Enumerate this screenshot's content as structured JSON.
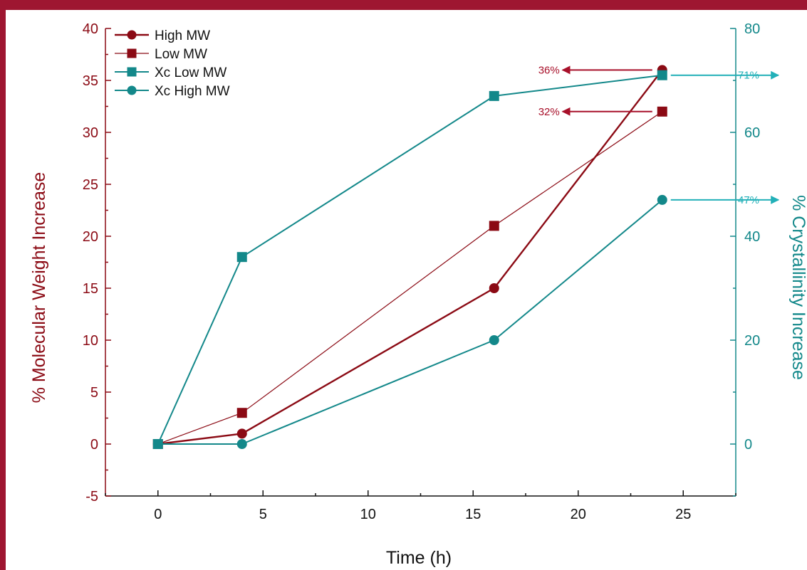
{
  "chart_data": {
    "type": "line",
    "x_label": "Time (h)",
    "y_left_label": "% Molecular Weight Increase",
    "y_right_label": "% Crystallinity Increase",
    "x_range": [
      -2.5,
      27.5
    ],
    "x_ticks": [
      0,
      5,
      10,
      15,
      20,
      25
    ],
    "y_left_range": [
      -5,
      40
    ],
    "y_left_ticks": [
      -5,
      0,
      5,
      10,
      15,
      20,
      25,
      30,
      35,
      40
    ],
    "y_right_range": [
      -10,
      80
    ],
    "y_right_ticks": [
      0,
      20,
      40,
      60,
      80
    ],
    "grid": false,
    "legend_position": "top-left",
    "colors": {
      "molecular_weight": "#8b0a14",
      "crystallinity": "#13888a"
    },
    "series": [
      {
        "name": "High MW",
        "axis": "left",
        "marker": "circle",
        "line_width": 2.4,
        "x": [
          0,
          4,
          16,
          24
        ],
        "y": [
          0,
          1,
          15,
          36
        ]
      },
      {
        "name": "Low MW",
        "axis": "left",
        "marker": "square",
        "line_width": 1.2,
        "x": [
          0,
          4,
          16,
          24
        ],
        "y": [
          0,
          3,
          21,
          32
        ]
      },
      {
        "name": "Xc Low MW",
        "axis": "right",
        "marker": "square",
        "line_width": 2,
        "x": [
          0,
          4,
          16,
          24
        ],
        "y": [
          0,
          36,
          67,
          71
        ]
      },
      {
        "name": "Xc High MW",
        "axis": "right",
        "marker": "circle",
        "line_width": 2,
        "x": [
          0,
          4,
          16,
          24
        ],
        "y": [
          0,
          0,
          20,
          47
        ]
      }
    ],
    "annotations": [
      {
        "text": "36%",
        "series": "High MW",
        "direction": "left",
        "color": "#a8102a"
      },
      {
        "text": "32%",
        "series": "Low MW",
        "direction": "left",
        "color": "#a8102a"
      },
      {
        "text": "71%",
        "series": "Xc Low MW",
        "direction": "right",
        "color": "#22b0b8"
      },
      {
        "text": "47%",
        "series": "Xc High MW",
        "direction": "right",
        "color": "#22b0b8"
      }
    ]
  }
}
